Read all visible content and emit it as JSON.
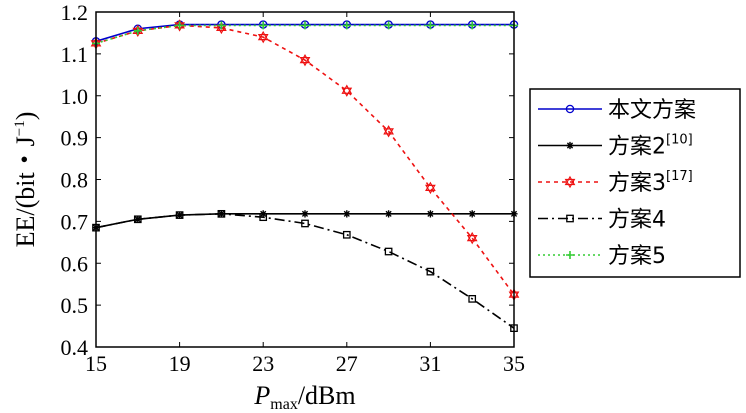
{
  "chart_data": {
    "type": "line",
    "x_values": [
      15,
      17,
      19,
      21,
      23,
      25,
      27,
      29,
      31,
      33,
      35
    ],
    "x_ticks": [
      "15",
      "19",
      "23",
      "27",
      "31",
      "35"
    ],
    "y_ticks": [
      "0.4",
      "0.5",
      "0.6",
      "0.7",
      "0.8",
      "0.9",
      "1.0",
      "1.1",
      "1.2"
    ],
    "xlim": [
      15,
      35
    ],
    "ylim": [
      0.4,
      1.2
    ],
    "xlabel": {
      "main": "P",
      "sub": "max",
      "rest": "/dBm"
    },
    "ylabel": {
      "main": "EE/(bit・J",
      "sup": "−1",
      "close": ")"
    },
    "grid": false,
    "legend_position": "right",
    "series": [
      {
        "name": "本文方案",
        "ref": "",
        "color": "#0000cc",
        "dash": "",
        "marker": "circle",
        "values": [
          1.13,
          1.16,
          1.17,
          1.17,
          1.17,
          1.17,
          1.17,
          1.17,
          1.17,
          1.17,
          1.17
        ]
      },
      {
        "name": "方案2",
        "ref": "[10]",
        "color": "#000000",
        "dash": "",
        "marker": "asterisk",
        "values": [
          0.685,
          0.705,
          0.715,
          0.718,
          0.718,
          0.718,
          0.718,
          0.718,
          0.718,
          0.718,
          0.718
        ]
      },
      {
        "name": "方案3",
        "ref": "[17]",
        "color": "#ee1111",
        "dash": "4,4",
        "marker": "hexagram",
        "values": [
          1.125,
          1.155,
          1.168,
          1.162,
          1.14,
          1.085,
          1.012,
          0.915,
          0.78,
          0.66,
          0.525
        ]
      },
      {
        "name": "方案4",
        "ref": "",
        "color": "#000000",
        "dash": "10,4,2,4",
        "marker": "square",
        "values": [
          0.685,
          0.705,
          0.715,
          0.718,
          0.71,
          0.695,
          0.668,
          0.628,
          0.58,
          0.515,
          0.445
        ]
      },
      {
        "name": "方案5",
        "ref": "",
        "color": "#33cc33",
        "dash": "2,3",
        "marker": "plus",
        "values": [
          1.125,
          1.155,
          1.168,
          1.168,
          1.168,
          1.168,
          1.168,
          1.168,
          1.168,
          1.168,
          1.168
        ]
      }
    ]
  }
}
